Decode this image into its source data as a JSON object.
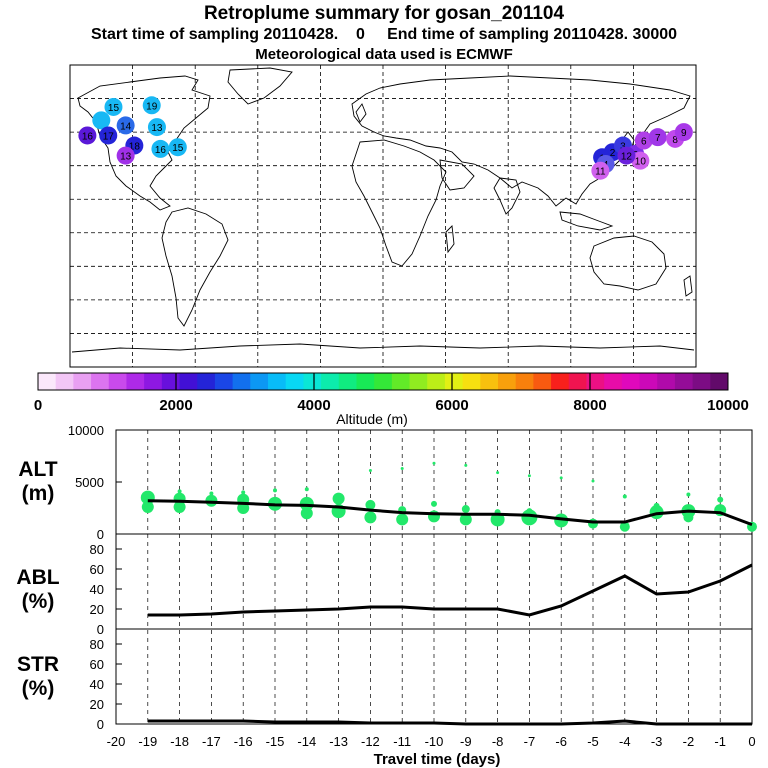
{
  "header": {
    "title": "Retroplume summary for gosan_201104",
    "start_label": "Start time of sampling 20110428.",
    "start_value": "0",
    "end_label": "End time of sampling 20110428. 30000",
    "met_label": "Meteorological data used is ECMWF"
  },
  "colorbar": {
    "ticks": [
      "0",
      "2000",
      "4000",
      "6000",
      "8000",
      "10000"
    ],
    "label": "Altitude (m)",
    "colors": [
      "#fbe8fb",
      "#f3c6f6",
      "#e9a0f2",
      "#dc74ef",
      "#c94aec",
      "#ae2ae8",
      "#8e18e2",
      "#6810dc",
      "#4210d6",
      "#2424d8",
      "#1a46e6",
      "#1270ee",
      "#0c98f4",
      "#08bcf8",
      "#08d8f4",
      "#0ae6d6",
      "#0cecac",
      "#10ec80",
      "#18ea56",
      "#34e838",
      "#62ea28",
      "#90ec20",
      "#bcee18",
      "#e2f014",
      "#f6e010",
      "#f8c00e",
      "#f8a00c",
      "#f8800c",
      "#f85a10",
      "#f8201c",
      "#f01450",
      "#ec1084",
      "#e80ca8",
      "#e008bc",
      "#cc08b8",
      "#b00aaa",
      "#940c98",
      "#7c0c84",
      "#620a6a"
    ]
  },
  "chart_data": [
    {
      "type": "scatter",
      "panel": "ALT",
      "ylabel": "ALT\n(m)",
      "ylim": [
        0,
        10000
      ],
      "yticks": [
        "10000",
        "5000",
        "0"
      ],
      "x": [
        -19,
        -18,
        -17,
        -16,
        -15,
        -14,
        -13,
        -12,
        -11,
        -10,
        -9,
        -8,
        -7,
        -6,
        -5,
        -4,
        -3,
        -2,
        -1,
        0
      ],
      "mean_line": [
        3200,
        3150,
        3050,
        2950,
        2800,
        2750,
        2600,
        2300,
        2050,
        1950,
        1900,
        1900,
        1800,
        1450,
        1150,
        1150,
        1950,
        2200,
        2050,
        900
      ],
      "plume_points": [
        {
          "x": -19,
          "y": 3500,
          "s": 7
        },
        {
          "x": -19,
          "y": 2600,
          "s": 6
        },
        {
          "x": -18,
          "y": 3400,
          "s": 6
        },
        {
          "x": -18,
          "y": 2600,
          "s": 6
        },
        {
          "x": -18,
          "y": 4100,
          "s": 2
        },
        {
          "x": -17,
          "y": 3200,
          "s": 6
        },
        {
          "x": -17,
          "y": 3900,
          "s": 2
        },
        {
          "x": -16,
          "y": 3300,
          "s": 6
        },
        {
          "x": -16,
          "y": 2500,
          "s": 6
        },
        {
          "x": -16,
          "y": 4000,
          "s": 2
        },
        {
          "x": -15,
          "y": 2900,
          "s": 7
        },
        {
          "x": -15,
          "y": 4200,
          "s": 2
        },
        {
          "x": -14,
          "y": 2900,
          "s": 7
        },
        {
          "x": -14,
          "y": 2000,
          "s": 6
        },
        {
          "x": -14,
          "y": 4300,
          "s": 2
        },
        {
          "x": -13,
          "y": 2200,
          "s": 7
        },
        {
          "x": -13,
          "y": 3400,
          "s": 6
        },
        {
          "x": -12,
          "y": 2800,
          "s": 5
        },
        {
          "x": -12,
          "y": 1600,
          "s": 6
        },
        {
          "x": -12,
          "y": 6100,
          "s": 1.5
        },
        {
          "x": -11,
          "y": 1400,
          "s": 6
        },
        {
          "x": -11,
          "y": 2300,
          "s": 4
        },
        {
          "x": -11,
          "y": 6300,
          "s": 1.5
        },
        {
          "x": -10,
          "y": 1700,
          "s": 6
        },
        {
          "x": -10,
          "y": 2900,
          "s": 3
        },
        {
          "x": -10,
          "y": 6800,
          "s": 1.5
        },
        {
          "x": -9,
          "y": 1400,
          "s": 6
        },
        {
          "x": -9,
          "y": 2400,
          "s": 4
        },
        {
          "x": -9,
          "y": 6600,
          "s": 1.5
        },
        {
          "x": -8,
          "y": 1400,
          "s": 7
        },
        {
          "x": -8,
          "y": 2100,
          "s": 3
        },
        {
          "x": -8,
          "y": 5900,
          "s": 1.5
        },
        {
          "x": -7,
          "y": 1600,
          "s": 8
        },
        {
          "x": -7,
          "y": 2200,
          "s": 3
        },
        {
          "x": -7,
          "y": 5600,
          "s": 1.5
        },
        {
          "x": -6,
          "y": 1300,
          "s": 7
        },
        {
          "x": -6,
          "y": 5400,
          "s": 1.5
        },
        {
          "x": -5,
          "y": 1000,
          "s": 5
        },
        {
          "x": -5,
          "y": 5100,
          "s": 1.5
        },
        {
          "x": -4,
          "y": 700,
          "s": 5
        },
        {
          "x": -4,
          "y": 3600,
          "s": 2
        },
        {
          "x": -3,
          "y": 2100,
          "s": 7
        },
        {
          "x": -3,
          "y": 2700,
          "s": 3
        },
        {
          "x": -2,
          "y": 2200,
          "s": 7
        },
        {
          "x": -2,
          "y": 1600,
          "s": 5
        },
        {
          "x": -2,
          "y": 3800,
          "s": 2
        },
        {
          "x": -1,
          "y": 2300,
          "s": 6
        },
        {
          "x": -1,
          "y": 3300,
          "s": 3
        },
        {
          "x": 0,
          "y": 700,
          "s": 5
        }
      ]
    },
    {
      "type": "line",
      "panel": "ABL",
      "ylabel": "ABL\n(%)",
      "ylim": [
        0,
        95
      ],
      "yticks": [
        "80",
        "60",
        "40",
        "20",
        "0"
      ],
      "x": [
        -19,
        -18,
        -17,
        -16,
        -15,
        -14,
        -13,
        -12,
        -11,
        -10,
        -9,
        -8,
        -7,
        -6,
        -5,
        -4,
        -3,
        -2,
        -1,
        0
      ],
      "values": [
        14,
        14,
        15,
        17,
        18,
        19,
        20,
        22,
        22,
        20,
        20,
        20,
        14,
        23,
        38,
        53,
        35,
        37,
        48,
        64
      ]
    },
    {
      "type": "line",
      "panel": "STR",
      "ylabel": "STR\n(%)",
      "ylim": [
        0,
        95
      ],
      "yticks": [
        "80",
        "60",
        "40",
        "20",
        "0"
      ],
      "x": [
        -19,
        -18,
        -17,
        -16,
        -15,
        -14,
        -13,
        -12,
        -11,
        -10,
        -9,
        -8,
        -7,
        -6,
        -5,
        -4,
        -3,
        -2,
        -1,
        0
      ],
      "values": [
        3,
        3,
        3,
        3,
        2,
        2,
        2,
        1,
        1,
        1,
        0,
        0,
        0,
        0,
        1,
        3,
        0,
        0,
        0,
        0
      ]
    }
  ],
  "xaxis": {
    "ticks": [
      "-20",
      "-19",
      "-18",
      "-17",
      "-16",
      "-15",
      "-14",
      "-13",
      "-12",
      "-11",
      "-10",
      "-9",
      "-8",
      "-7",
      "-6",
      "-5",
      "-4",
      "-3",
      "-2",
      "-1",
      "0"
    ],
    "label": "Travel time (days)"
  },
  "map": {
    "markers": [
      {
        "lon": -155,
        "lat": 65,
        "label": "15",
        "color": "#18b8f4"
      },
      {
        "lon": -133,
        "lat": 66,
        "label": "19",
        "color": "#18b8f4"
      },
      {
        "lon": -162,
        "lat": 57,
        "label": "",
        "color": "#18b8f4"
      },
      {
        "lon": -148,
        "lat": 54,
        "label": "14",
        "color": "#2a6ae8"
      },
      {
        "lon": -130,
        "lat": 53,
        "label": "13",
        "color": "#18b8f4"
      },
      {
        "lon": -170,
        "lat": 48,
        "label": "16",
        "color": "#5a18d8"
      },
      {
        "lon": -158,
        "lat": 48,
        "label": "17",
        "color": "#2424d8"
      },
      {
        "lon": -143,
        "lat": 42,
        "label": "18",
        "color": "#2424d8"
      },
      {
        "lon": -148,
        "lat": 36,
        "label": "13",
        "color": "#a030e8"
      },
      {
        "lon": -128,
        "lat": 40,
        "label": "16",
        "color": "#18b8f4"
      },
      {
        "lon": -118,
        "lat": 41,
        "label": "15",
        "color": "#18b8f4"
      },
      {
        "lon": 126,
        "lat": 35,
        "label": "1",
        "color": "#2424d8"
      },
      {
        "lon": 132,
        "lat": 38,
        "label": "2",
        "color": "#2424d8"
      },
      {
        "lon": 138,
        "lat": 42,
        "label": "3",
        "color": "#3a3ae0"
      },
      {
        "lon": 128,
        "lat": 31,
        "label": "4",
        "color": "#5a5ae6"
      },
      {
        "lon": 145,
        "lat": 37,
        "label": "5",
        "color": "#8030e8"
      },
      {
        "lon": 150,
        "lat": 45,
        "label": "6",
        "color": "#b040e8"
      },
      {
        "lon": 158,
        "lat": 47,
        "label": "7",
        "color": "#a038e8"
      },
      {
        "lon": 168,
        "lat": 46,
        "label": "8",
        "color": "#c04aec"
      },
      {
        "lon": 173,
        "lat": 50,
        "label": "9",
        "color": "#a838e8"
      },
      {
        "lon": 148,
        "lat": 33,
        "label": "10",
        "color": "#d060ee"
      },
      {
        "lon": 125,
        "lat": 27,
        "label": "11",
        "color": "#d060ee"
      },
      {
        "lon": 140,
        "lat": 36,
        "label": "12",
        "color": "#6a20dc"
      }
    ]
  }
}
